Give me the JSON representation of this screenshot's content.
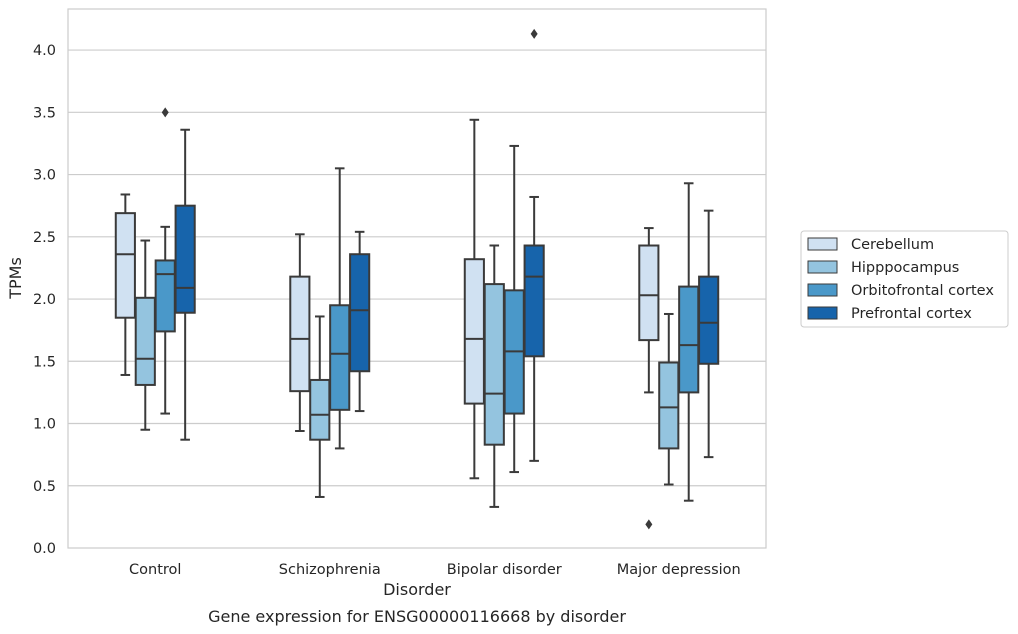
{
  "chart_data": {
    "type": "box",
    "xlabel": "Disorder",
    "ylabel": "TPMs",
    "caption": "Gene expression for ENSG00000116668 by disorder",
    "categories": [
      "Control",
      "Schizophrenia",
      "Bipolar disorder",
      "Major depression"
    ],
    "ylim": [
      0,
      4.33
    ],
    "yticks": [
      "0.0",
      "0.5",
      "1.0",
      "1.5",
      "2.0",
      "2.5",
      "3.0",
      "3.5",
      "4.0"
    ],
    "grid": "horizontal",
    "legend_position": "right",
    "series": [
      {
        "name": "Cerebellum",
        "color": "#d0e1f2",
        "boxes": [
          {
            "whisker_low": 1.39,
            "q1": 1.85,
            "median": 2.36,
            "q3": 2.69,
            "whisker_high": 2.84,
            "outliers": []
          },
          {
            "whisker_low": 0.94,
            "q1": 1.26,
            "median": 1.68,
            "q3": 2.18,
            "whisker_high": 2.52,
            "outliers": []
          },
          {
            "whisker_low": 0.56,
            "q1": 1.16,
            "median": 1.68,
            "q3": 2.32,
            "whisker_high": 3.44,
            "outliers": []
          },
          {
            "whisker_low": 1.25,
            "q1": 1.67,
            "median": 2.03,
            "q3": 2.43,
            "whisker_high": 2.57,
            "outliers": [
              0.19
            ]
          }
        ]
      },
      {
        "name": "Hipppocampus",
        "color": "#94c4df",
        "boxes": [
          {
            "whisker_low": 0.95,
            "q1": 1.31,
            "median": 1.52,
            "q3": 2.01,
            "whisker_high": 2.47,
            "outliers": []
          },
          {
            "whisker_low": 0.41,
            "q1": 0.87,
            "median": 1.07,
            "q3": 1.35,
            "whisker_high": 1.86,
            "outliers": []
          },
          {
            "whisker_low": 0.33,
            "q1": 0.83,
            "median": 1.24,
            "q3": 2.12,
            "whisker_high": 2.43,
            "outliers": []
          },
          {
            "whisker_low": 0.51,
            "q1": 0.8,
            "median": 1.13,
            "q3": 1.49,
            "whisker_high": 1.88,
            "outliers": []
          }
        ]
      },
      {
        "name": "Orbitofrontal cortex",
        "color": "#4a98c9",
        "boxes": [
          {
            "whisker_low": 1.08,
            "q1": 1.74,
            "median": 2.2,
            "q3": 2.31,
            "whisker_high": 2.58,
            "outliers": [
              3.5
            ]
          },
          {
            "whisker_low": 0.8,
            "q1": 1.11,
            "median": 1.56,
            "q3": 1.95,
            "whisker_high": 3.05,
            "outliers": []
          },
          {
            "whisker_low": 0.61,
            "q1": 1.08,
            "median": 1.58,
            "q3": 2.07,
            "whisker_high": 3.23,
            "outliers": []
          },
          {
            "whisker_low": 0.38,
            "q1": 1.25,
            "median": 1.63,
            "q3": 2.1,
            "whisker_high": 2.93,
            "outliers": []
          }
        ]
      },
      {
        "name": "Prefrontal cortex",
        "color": "#1764ab",
        "boxes": [
          {
            "whisker_low": 0.87,
            "q1": 1.89,
            "median": 2.09,
            "q3": 2.75,
            "whisker_high": 3.36,
            "outliers": []
          },
          {
            "whisker_low": 1.1,
            "q1": 1.42,
            "median": 1.91,
            "q3": 2.36,
            "whisker_high": 2.54,
            "outliers": []
          },
          {
            "whisker_low": 0.7,
            "q1": 1.54,
            "median": 2.18,
            "q3": 2.43,
            "whisker_high": 2.82,
            "outliers": [
              4.13
            ]
          },
          {
            "whisker_low": 0.73,
            "q1": 1.48,
            "median": 1.81,
            "q3": 2.18,
            "whisker_high": 2.71,
            "outliers": []
          }
        ]
      }
    ]
  }
}
